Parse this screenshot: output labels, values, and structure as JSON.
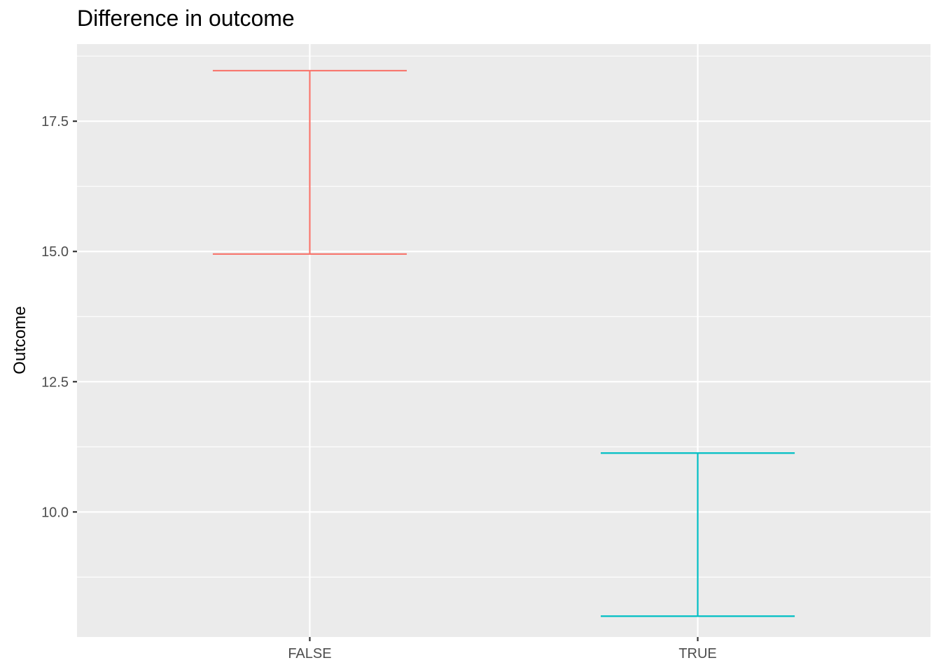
{
  "chart_data": {
    "type": "errorbar",
    "title": "Difference in outcome",
    "xlabel": "",
    "ylabel": "Outcome",
    "categories": [
      "FALSE",
      "TRUE"
    ],
    "series": [
      {
        "category": "FALSE",
        "ymin": 14.95,
        "ymax": 18.47,
        "color": "#F8766D"
      },
      {
        "category": "TRUE",
        "ymin": 8.0,
        "ymax": 11.13,
        "color": "#00BFC4"
      }
    ],
    "ylim": [
      7.6,
      18.98
    ],
    "yticks": [
      10.0,
      12.5,
      15.0,
      17.5
    ],
    "ytick_labels": [
      "10.0",
      "12.5",
      "15.0",
      "17.5"
    ],
    "grid": true,
    "panel_background": "#EBEBEB",
    "grid_color": "#FFFFFF",
    "legend": "none"
  }
}
